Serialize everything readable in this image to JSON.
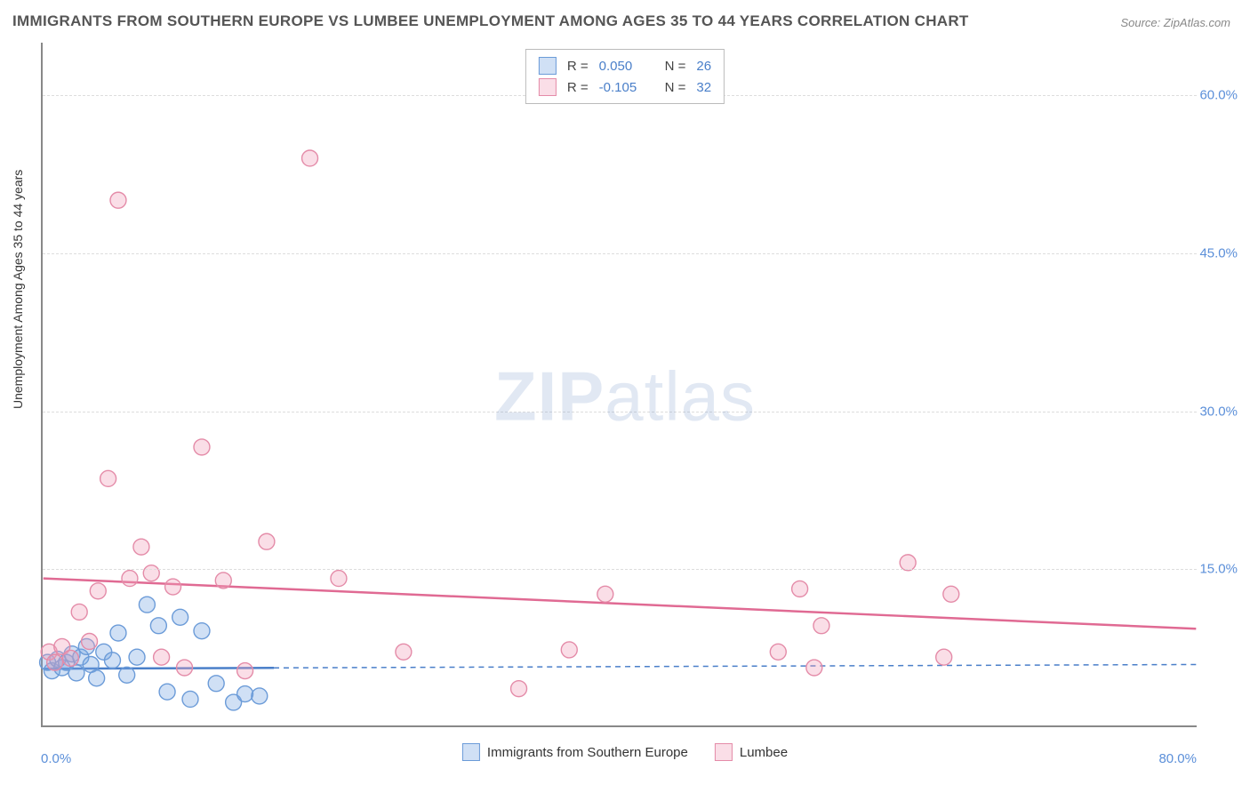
{
  "title": "IMMIGRANTS FROM SOUTHERN EUROPE VS LUMBEE UNEMPLOYMENT AMONG AGES 35 TO 44 YEARS CORRELATION CHART",
  "source": "Source: ZipAtlas.com",
  "ylabel": "Unemployment Among Ages 35 to 44 years",
  "watermark_bold": "ZIP",
  "watermark_rest": "atlas",
  "chart": {
    "type": "scatter",
    "xlim": [
      0,
      80
    ],
    "ylim": [
      0,
      65
    ],
    "background_color": "#ffffff",
    "grid_color": "#dddddd",
    "axis_color": "#888888",
    "tick_color": "#5b8fd9",
    "yticks": [
      15,
      30,
      45,
      60
    ],
    "ytick_labels": [
      "15.0%",
      "30.0%",
      "45.0%",
      "60.0%"
    ],
    "xtick_left": "0.0%",
    "xtick_right": "80.0%",
    "marker_radius": 9,
    "marker_stroke_width": 1.4,
    "series": [
      {
        "name": "Immigrants from Southern Europe",
        "fill": "rgba(120,165,225,0.35)",
        "stroke": "#6b9bd8",
        "R": "0.050",
        "N": "26",
        "trend": {
          "y_start": 5.4,
          "y_end": 5.8,
          "stroke": "#4a7fc9",
          "width": 2.5,
          "dash": "none",
          "solid_until_x": 16,
          "dash_after": "6 5"
        },
        "points": [
          [
            0.3,
            6
          ],
          [
            0.6,
            5.2
          ],
          [
            1.0,
            6.3
          ],
          [
            1.3,
            5.5
          ],
          [
            1.6,
            6.0
          ],
          [
            2.0,
            6.8
          ],
          [
            2.3,
            5.0
          ],
          [
            2.6,
            6.5
          ],
          [
            3.0,
            7.5
          ],
          [
            3.3,
            5.8
          ],
          [
            3.7,
            4.5
          ],
          [
            4.2,
            7.0
          ],
          [
            4.8,
            6.2
          ],
          [
            5.2,
            8.8
          ],
          [
            5.8,
            4.8
          ],
          [
            6.5,
            6.5
          ],
          [
            7.2,
            11.5
          ],
          [
            8.0,
            9.5
          ],
          [
            8.6,
            3.2
          ],
          [
            9.5,
            10.3
          ],
          [
            10.2,
            2.5
          ],
          [
            11.0,
            9.0
          ],
          [
            12.0,
            4.0
          ],
          [
            13.2,
            2.2
          ],
          [
            14.0,
            3.0
          ],
          [
            15.0,
            2.8
          ]
        ]
      },
      {
        "name": "Lumbee",
        "fill": "rgba(240,160,185,0.35)",
        "stroke": "#e48ba8",
        "R": "-0.105",
        "N": "32",
        "trend": {
          "y_start": 14.0,
          "y_end": 9.2,
          "stroke": "#e06a93",
          "width": 2.5,
          "dash": "none"
        },
        "points": [
          [
            0.4,
            7.0
          ],
          [
            0.8,
            6.0
          ],
          [
            1.3,
            7.5
          ],
          [
            1.9,
            6.4
          ],
          [
            2.5,
            10.8
          ],
          [
            3.2,
            8.0
          ],
          [
            3.8,
            12.8
          ],
          [
            4.5,
            23.5
          ],
          [
            5.2,
            50.0
          ],
          [
            6.0,
            14.0
          ],
          [
            6.8,
            17.0
          ],
          [
            7.5,
            14.5
          ],
          [
            8.2,
            6.5
          ],
          [
            9.0,
            13.2
          ],
          [
            9.8,
            5.5
          ],
          [
            11.0,
            26.5
          ],
          [
            12.5,
            13.8
          ],
          [
            14.0,
            5.2
          ],
          [
            15.5,
            17.5
          ],
          [
            18.5,
            54.0
          ],
          [
            20.5,
            14.0
          ],
          [
            25.0,
            7.0
          ],
          [
            33.0,
            3.5
          ],
          [
            36.5,
            7.2
          ],
          [
            39.0,
            12.5
          ],
          [
            51.0,
            7.0
          ],
          [
            52.5,
            13.0
          ],
          [
            53.5,
            5.5
          ],
          [
            54.0,
            9.5
          ],
          [
            60.0,
            15.5
          ],
          [
            62.5,
            6.5
          ],
          [
            63.0,
            12.5
          ]
        ]
      }
    ]
  },
  "legend_top": {
    "r_label": "R =",
    "n_label": "N ="
  },
  "legend_bottom": {
    "items": [
      "Immigrants from Southern Europe",
      "Lumbee"
    ]
  }
}
